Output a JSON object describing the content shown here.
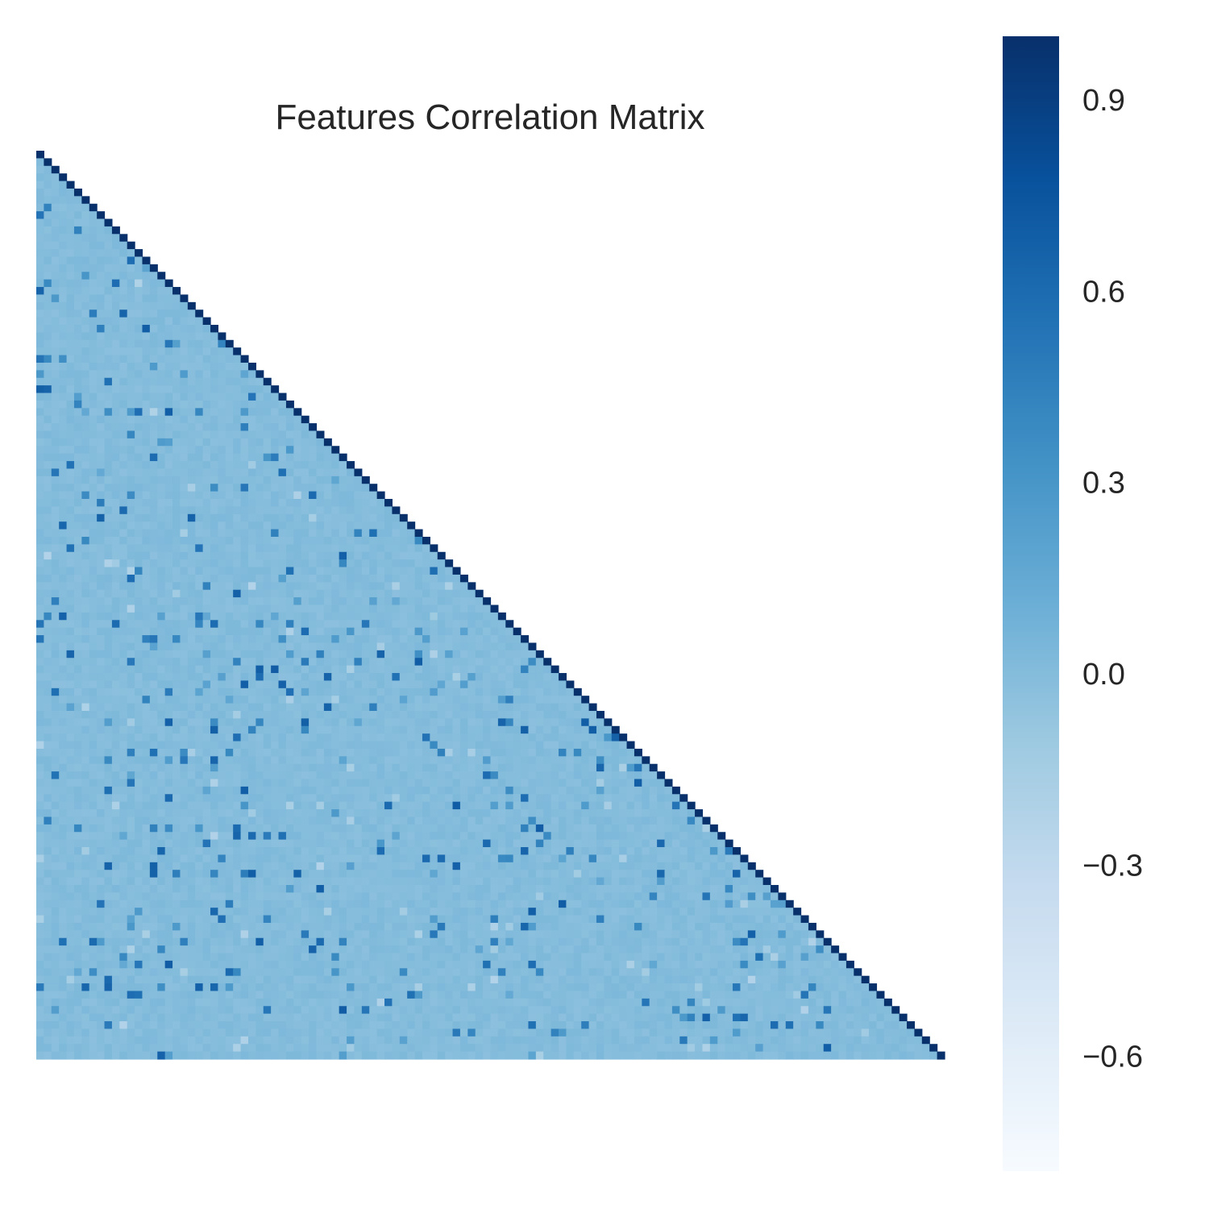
{
  "chart_data": {
    "type": "heatmap",
    "title": "Features Correlation Matrix",
    "mask": "upper-triangle",
    "n_features": 120,
    "colormap": "Blues",
    "colormap_stops": [
      "#f7fbff",
      "#deebf7",
      "#c6dbef",
      "#9ecae1",
      "#6baed6",
      "#4292c6",
      "#2171b5",
      "#08519c",
      "#08306b"
    ],
    "value_range": [
      -0.78,
      1.0
    ],
    "typical_offdiagonal_value": 0.0,
    "colorbar": {
      "ticks": [
        0.9,
        0.6,
        0.3,
        0.0,
        -0.3,
        -0.6
      ],
      "tick_labels": [
        "0.9",
        "0.6",
        "0.3",
        "0.0",
        "−0.3",
        "−0.6"
      ]
    },
    "xlabel": "",
    "ylabel": "",
    "grid": false
  }
}
